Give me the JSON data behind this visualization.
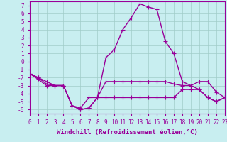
{
  "xlabel": "Windchill (Refroidissement éolien,°C)",
  "background_color": "#c8eef0",
  "grid_color": "#a0ccc8",
  "line_color": "#990099",
  "x_hours": [
    0,
    1,
    2,
    3,
    4,
    5,
    6,
    7,
    8,
    9,
    10,
    11,
    12,
    13,
    14,
    15,
    16,
    17,
    18,
    19,
    20,
    21,
    22,
    23
  ],
  "series": [
    [
      -1.5,
      -2.0,
      -2.5,
      -3.0,
      -3.0,
      -5.5,
      -6.0,
      -5.8,
      -4.5,
      0.5,
      1.5,
      4.0,
      5.5,
      7.2,
      6.8,
      6.5,
      2.5,
      1.0,
      -2.5,
      -3.0,
      -2.5,
      -2.5,
      -3.8,
      -4.5
    ],
    [
      -1.5,
      -2.0,
      -2.8,
      -3.0,
      -3.0,
      -5.5,
      -5.8,
      -4.5,
      -4.5,
      -2.5,
      -2.5,
      -2.5,
      -2.5,
      -2.5,
      -2.5,
      -2.5,
      -2.5,
      -2.8,
      -3.0,
      -3.0,
      -3.5,
      -4.5,
      -5.0,
      -4.5
    ],
    [
      -1.5,
      -2.2,
      -3.0,
      -3.0,
      -3.0,
      -5.5,
      -6.0,
      -5.8,
      -4.5,
      -4.5,
      -4.5,
      -4.5,
      -4.5,
      -4.5,
      -4.5,
      -4.5,
      -4.5,
      -4.5,
      -3.5,
      -3.5,
      -3.5,
      -4.5,
      -5.0,
      -4.5
    ]
  ],
  "xlim": [
    0,
    23
  ],
  "ylim": [
    -6.5,
    7.5
  ],
  "yticks": [
    7,
    6,
    5,
    4,
    3,
    2,
    1,
    0,
    -1,
    -2,
    -3,
    -4,
    -5,
    -6
  ],
  "xticks": [
    0,
    1,
    2,
    3,
    4,
    5,
    6,
    7,
    8,
    9,
    10,
    11,
    12,
    13,
    14,
    15,
    16,
    17,
    18,
    19,
    20,
    21,
    22,
    23
  ],
  "xtick_labels": [
    "0",
    "1",
    "2",
    "3",
    "4",
    "5",
    "6",
    "7",
    "8",
    "9",
    "10",
    "11",
    "12",
    "13",
    "14",
    "15",
    "16",
    "17",
    "18",
    "19",
    "20",
    "21",
    "22",
    "23"
  ],
  "marker": "+",
  "markersize": 4,
  "linewidth": 1.0,
  "xlabel_fontsize": 6.5,
  "tick_fontsize": 5.5
}
